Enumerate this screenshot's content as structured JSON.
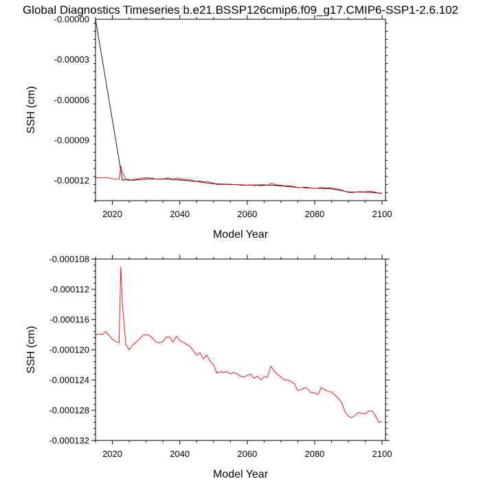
{
  "figure": {
    "title": "Global Diagnostics Timeseries b.e21.BSSP126cmip6.f09_g17.CMIP6-SSP1-2.6.102"
  },
  "chart_data": [
    {
      "type": "line",
      "title": "",
      "xlabel": "Model Year",
      "ylabel": "SSH (cm)",
      "xlim": [
        2015,
        2101
      ],
      "ylim": [
        -0.000135,
        0
      ],
      "x_ticks": [
        2020,
        2040,
        2060,
        2080,
        2100
      ],
      "y_ticks": [
        -0.00012,
        -9e-05,
        -6e-05,
        -3e-05,
        0
      ],
      "y_tick_labels": [
        "-0.00012",
        "-0.00009",
        "-0.00006",
        "-0.00003",
        "-0.00000"
      ],
      "grid": false,
      "legend": "none",
      "series": [
        {
          "color": "#000000",
          "x": [
            2015,
            2023,
            2024,
            2025,
            2026,
            2030,
            2035,
            2040,
            2045,
            2050,
            2055,
            2060,
            2065,
            2070,
            2075,
            2080,
            2085,
            2090,
            2095,
            2100
          ],
          "y": [
            0,
            -0.00012,
            -0.000119,
            -0.0001195,
            -0.0001198,
            -0.000119,
            -0.0001188,
            -0.0001196,
            -0.0001208,
            -0.0001225,
            -0.0001228,
            -0.0001235,
            -0.0001232,
            -0.000124,
            -0.0001252,
            -0.0001258,
            -0.0001262,
            -0.0001285,
            -0.0001287,
            -0.0001295
          ]
        },
        {
          "color": "#ff0000",
          "x": [
            2015,
            2016,
            2017,
            2018,
            2019,
            2020,
            2021,
            2022,
            2022.5,
            2023,
            2024,
            2025,
            2026,
            2027,
            2028,
            2029,
            2030,
            2031,
            2032,
            2033,
            2034,
            2035,
            2036,
            2037,
            2038,
            2039,
            2040,
            2041,
            2042,
            2043,
            2044,
            2045,
            2046,
            2047,
            2048,
            2049,
            2050,
            2051,
            2052,
            2053,
            2054,
            2055,
            2056,
            2057,
            2058,
            2059,
            2060,
            2061,
            2062,
            2063,
            2064,
            2065,
            2066,
            2067,
            2068,
            2069,
            2070,
            2071,
            2072,
            2073,
            2074,
            2075,
            2076,
            2077,
            2078,
            2079,
            2080,
            2081,
            2082,
            2083,
            2084,
            2085,
            2086,
            2087,
            2088,
            2089,
            2090,
            2091,
            2092,
            2093,
            2094,
            2095,
            2096,
            2097,
            2098,
            2099,
            2100
          ],
          "y": [
            -0.000118,
            -0.0001179,
            -0.000118,
            -0.0001176,
            -0.0001181,
            -0.0001186,
            -0.0001189,
            -0.0001191,
            -0.000109,
            -0.000114,
            -0.0001193,
            -0.00012,
            -0.0001194,
            -0.000119,
            -0.0001186,
            -0.0001181,
            -0.000118,
            -0.0001181,
            -0.0001185,
            -0.000119,
            -0.0001191,
            -0.0001189,
            -0.0001183,
            -0.0001183,
            -0.000119,
            -0.0001182,
            -0.0001188,
            -0.000119,
            -0.0001193,
            -0.0001195,
            -0.0001201,
            -0.0001207,
            -0.0001204,
            -0.0001212,
            -0.0001207,
            -0.0001215,
            -0.000122,
            -0.0001231,
            -0.0001229,
            -0.000123,
            -0.0001229,
            -0.0001232,
            -0.000123,
            -0.0001232,
            -0.0001235,
            -0.0001236,
            -0.0001234,
            -0.0001232,
            -0.0001238,
            -0.0001235,
            -0.000124,
            -0.0001236,
            -0.0001236,
            -0.0001222,
            -0.0001228,
            -0.0001233,
            -0.0001236,
            -0.000124,
            -0.000124,
            -0.0001242,
            -0.0001245,
            -0.0001254,
            -0.0001253,
            -0.000125,
            -0.0001252,
            -0.0001257,
            -0.0001257,
            -0.0001259,
            -0.000125,
            -0.0001253,
            -0.0001255,
            -0.0001256,
            -0.000126,
            -0.0001264,
            -0.000127,
            -0.0001282,
            -0.0001288,
            -0.000129,
            -0.0001287,
            -0.0001283,
            -0.0001284,
            -0.0001285,
            -0.0001281,
            -0.0001281,
            -0.0001287,
            -0.0001296,
            -0.0001295
          ]
        }
      ]
    },
    {
      "type": "line",
      "title": "",
      "xlabel": "Model Year",
      "ylabel": "SSH (cm)",
      "xlim": [
        2015,
        2101
      ],
      "ylim": [
        -0.000132,
        -0.000108
      ],
      "x_ticks": [
        2020,
        2040,
        2060,
        2080,
        2100
      ],
      "y_ticks": [
        -0.000132,
        -0.000128,
        -0.000124,
        -0.00012,
        -0.000116,
        -0.000112,
        -0.000108
      ],
      "y_tick_labels": [
        "-0.000132",
        "-0.000128",
        "-0.000124",
        "-0.000120",
        "-0.000116",
        "-0.000112",
        "-0.000108"
      ],
      "grid": false,
      "legend": "none",
      "series": [
        {
          "color": "#ff0000",
          "x": [
            2015,
            2016,
            2017,
            2018,
            2019,
            2020,
            2021,
            2022,
            2022.5,
            2023,
            2024,
            2025,
            2026,
            2027,
            2028,
            2029,
            2030,
            2031,
            2032,
            2033,
            2034,
            2035,
            2036,
            2037,
            2038,
            2039,
            2040,
            2041,
            2042,
            2043,
            2044,
            2045,
            2046,
            2047,
            2048,
            2049,
            2050,
            2051,
            2052,
            2053,
            2054,
            2055,
            2056,
            2057,
            2058,
            2059,
            2060,
            2061,
            2062,
            2063,
            2064,
            2065,
            2066,
            2067,
            2068,
            2069,
            2070,
            2071,
            2072,
            2073,
            2074,
            2075,
            2076,
            2077,
            2078,
            2079,
            2080,
            2081,
            2082,
            2083,
            2084,
            2085,
            2086,
            2087,
            2088,
            2089,
            2090,
            2091,
            2092,
            2093,
            2094,
            2095,
            2096,
            2097,
            2098,
            2099,
            2100
          ],
          "y": [
            -0.000118,
            -0.0001179,
            -0.000118,
            -0.0001176,
            -0.0001181,
            -0.0001186,
            -0.0001189,
            -0.0001191,
            -0.000109,
            -0.000114,
            -0.0001193,
            -0.00012,
            -0.0001194,
            -0.000119,
            -0.0001186,
            -0.0001181,
            -0.000118,
            -0.0001181,
            -0.0001185,
            -0.000119,
            -0.0001191,
            -0.0001189,
            -0.0001183,
            -0.0001183,
            -0.000119,
            -0.0001182,
            -0.0001188,
            -0.000119,
            -0.0001193,
            -0.0001195,
            -0.0001201,
            -0.0001207,
            -0.0001204,
            -0.0001212,
            -0.0001207,
            -0.0001215,
            -0.000122,
            -0.0001231,
            -0.0001229,
            -0.000123,
            -0.0001229,
            -0.0001232,
            -0.000123,
            -0.0001232,
            -0.0001235,
            -0.0001236,
            -0.0001234,
            -0.0001232,
            -0.0001238,
            -0.0001235,
            -0.000124,
            -0.0001236,
            -0.0001236,
            -0.0001222,
            -0.0001228,
            -0.0001233,
            -0.0001236,
            -0.000124,
            -0.000124,
            -0.0001242,
            -0.0001245,
            -0.0001254,
            -0.0001253,
            -0.000125,
            -0.0001252,
            -0.0001257,
            -0.0001257,
            -0.0001259,
            -0.000125,
            -0.0001253,
            -0.0001255,
            -0.0001256,
            -0.000126,
            -0.0001264,
            -0.000127,
            -0.0001282,
            -0.0001288,
            -0.000129,
            -0.0001287,
            -0.0001283,
            -0.0001284,
            -0.0001285,
            -0.0001281,
            -0.0001281,
            -0.0001287,
            -0.0001296,
            -0.0001295
          ]
        }
      ]
    }
  ]
}
